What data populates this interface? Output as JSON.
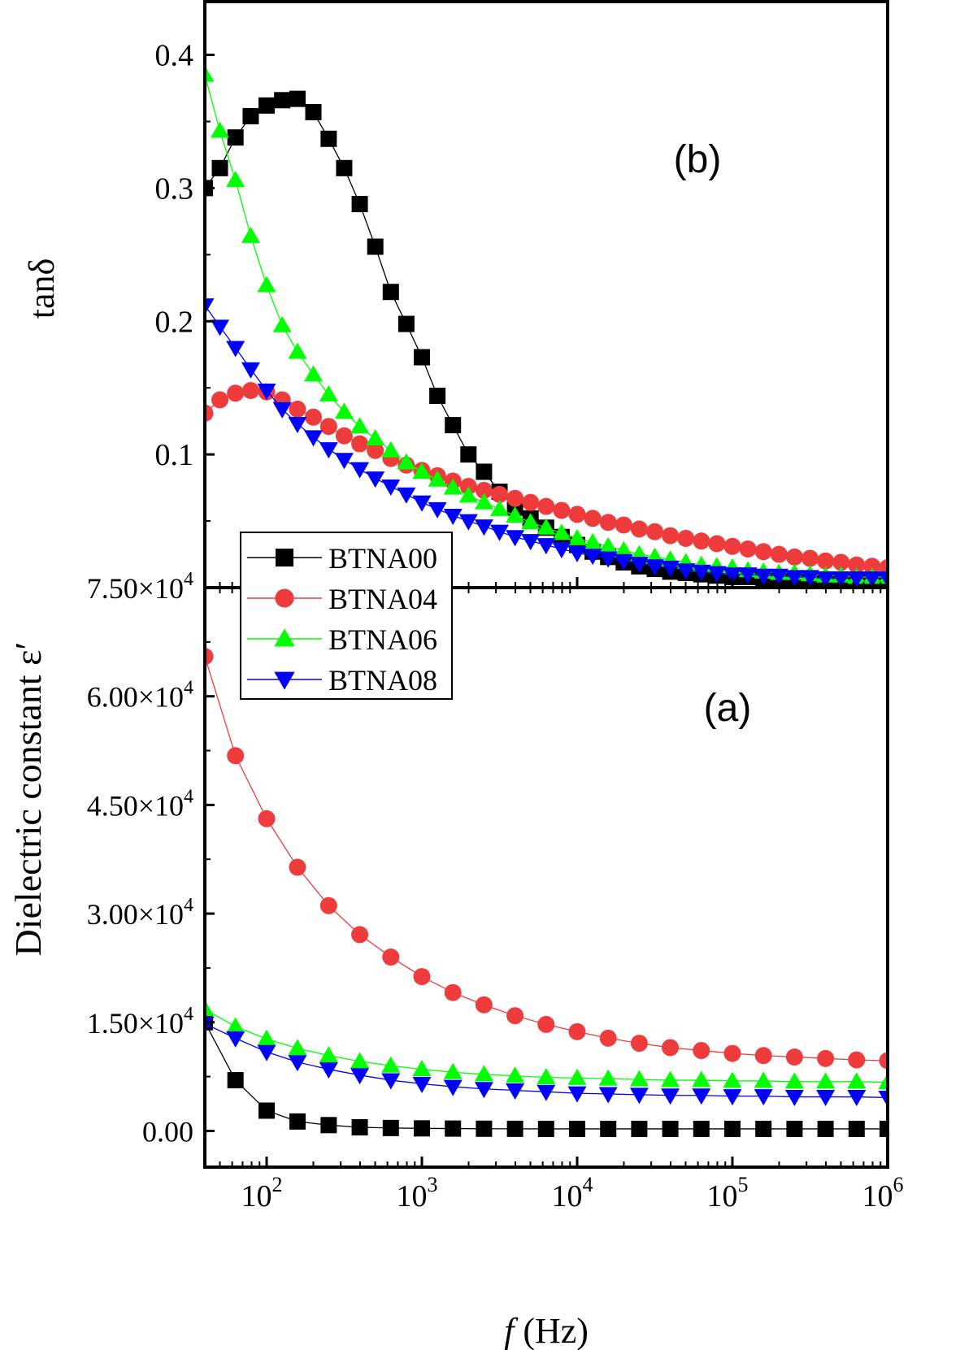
{
  "chart_data": [
    {
      "type": "scatter",
      "panel_label": "(b)",
      "ylabel": "tanδ",
      "xscale": "log",
      "xlim": [
        40,
        1000000
      ],
      "ylim": [
        0.0,
        0.44
      ],
      "yticks": [
        {
          "value": 0.1,
          "label": "0.1"
        },
        {
          "value": 0.2,
          "label": "0.2"
        },
        {
          "value": 0.3,
          "label": "0.3"
        },
        {
          "value": 0.4,
          "label": "0.4"
        }
      ],
      "series": [
        {
          "name": "BTNA00",
          "color": "#000000",
          "marker": "square",
          "x": [
            40,
            50,
            63,
            79,
            100,
            126,
            158,
            200,
            251,
            316,
            398,
            501,
            631,
            794,
            1000,
            1259,
            1585,
            1995,
            2512,
            3162,
            3981,
            5012,
            6310,
            7943,
            10000,
            12589,
            15849,
            19953,
            25119,
            31623,
            39811,
            50119,
            63096,
            79433,
            100000,
            125893,
            158489,
            199526,
            251189,
            316228,
            398107,
            501187,
            630957,
            794328,
            1000000
          ],
          "y": [
            0.3,
            0.315,
            0.338,
            0.354,
            0.362,
            0.366,
            0.367,
            0.357,
            0.337,
            0.315,
            0.288,
            0.256,
            0.222,
            0.198,
            0.173,
            0.144,
            0.122,
            0.1,
            0.087,
            0.072,
            0.06,
            0.052,
            0.045,
            0.038,
            0.032,
            0.027,
            0.023,
            0.019,
            0.016,
            0.014,
            0.012,
            0.011,
            0.01,
            0.009,
            0.008,
            0.008,
            0.007,
            0.007,
            0.006,
            0.006,
            0.006,
            0.005,
            0.005,
            0.005,
            0.005
          ]
        },
        {
          "name": "BTNA04",
          "color": "#ee3b3b",
          "marker": "circle",
          "x": [
            40,
            50,
            63,
            79,
            100,
            126,
            158,
            200,
            251,
            316,
            398,
            501,
            631,
            794,
            1000,
            1259,
            1585,
            1995,
            2512,
            3162,
            3981,
            5012,
            6310,
            7943,
            10000,
            12589,
            15849,
            19953,
            25119,
            31623,
            39811,
            50119,
            63096,
            79433,
            100000,
            125893,
            158489,
            199526,
            251189,
            316228,
            398107,
            501187,
            630957,
            794328,
            1000000
          ],
          "y": [
            0.131,
            0.141,
            0.146,
            0.148,
            0.147,
            0.141,
            0.134,
            0.128,
            0.121,
            0.114,
            0.108,
            0.103,
            0.097,
            0.092,
            0.088,
            0.084,
            0.08,
            0.076,
            0.073,
            0.07,
            0.067,
            0.064,
            0.061,
            0.058,
            0.055,
            0.052,
            0.049,
            0.047,
            0.044,
            0.042,
            0.039,
            0.037,
            0.035,
            0.033,
            0.031,
            0.029,
            0.027,
            0.025,
            0.023,
            0.022,
            0.02,
            0.019,
            0.017,
            0.016,
            0.015
          ]
        },
        {
          "name": "BTNA06",
          "color": "#00ff00",
          "marker": "triangle-up",
          "x": [
            40,
            50,
            63,
            79,
            100,
            126,
            158,
            200,
            251,
            316,
            398,
            501,
            631,
            794,
            1000,
            1259,
            1585,
            1995,
            2512,
            3162,
            3981,
            5012,
            6310,
            7943,
            10000,
            12589,
            15849,
            19953,
            25119,
            31623,
            39811,
            50119,
            63096,
            79433,
            100000,
            125893,
            158489,
            199526,
            251189,
            316228,
            398107,
            501187,
            630957,
            794328,
            1000000
          ],
          "y": [
            0.385,
            0.343,
            0.306,
            0.264,
            0.227,
            0.197,
            0.177,
            0.16,
            0.145,
            0.132,
            0.121,
            0.112,
            0.103,
            0.094,
            0.087,
            0.081,
            0.075,
            0.069,
            0.064,
            0.059,
            0.054,
            0.049,
            0.045,
            0.041,
            0.037,
            0.034,
            0.031,
            0.028,
            0.025,
            0.023,
            0.021,
            0.019,
            0.017,
            0.016,
            0.015,
            0.013,
            0.012,
            0.011,
            0.011,
            0.01,
            0.009,
            0.009,
            0.008,
            0.008,
            0.008
          ]
        },
        {
          "name": "BTNA08",
          "color": "#0000ff",
          "marker": "triangle-down",
          "x": [
            40,
            50,
            63,
            79,
            100,
            126,
            158,
            200,
            251,
            316,
            398,
            501,
            631,
            794,
            1000,
            1259,
            1585,
            1995,
            2512,
            3162,
            3981,
            5012,
            6310,
            7943,
            10000,
            12589,
            15849,
            19953,
            25119,
            31623,
            39811,
            50119,
            63096,
            79433,
            100000,
            125893,
            158489,
            199526,
            251189,
            316228,
            398107,
            501187,
            630957,
            794328,
            1000000
          ],
          "y": [
            0.212,
            0.196,
            0.18,
            0.164,
            0.148,
            0.134,
            0.123,
            0.113,
            0.104,
            0.096,
            0.089,
            0.082,
            0.076,
            0.07,
            0.064,
            0.059,
            0.054,
            0.05,
            0.046,
            0.042,
            0.038,
            0.035,
            0.032,
            0.029,
            0.026,
            0.024,
            0.022,
            0.02,
            0.018,
            0.016,
            0.015,
            0.013,
            0.012,
            0.011,
            0.01,
            0.01,
            0.009,
            0.009,
            0.008,
            0.008,
            0.007,
            0.007,
            0.007,
            0.007,
            0.007
          ]
        }
      ]
    },
    {
      "type": "scatter",
      "panel_label": "(a)",
      "ylabel": "Dielectric constant ε′",
      "xlabel_italic": "f",
      "xlabel_unit": " (Hz)",
      "xscale": "log",
      "xlim": [
        40,
        1000000
      ],
      "ylim": [
        -5000,
        75000
      ],
      "yticks": [
        {
          "value": 0,
          "mant": "0.00",
          "exp": ""
        },
        {
          "value": 15000,
          "mant": "1.50×10",
          "exp": "4"
        },
        {
          "value": 30000,
          "mant": "3.00×10",
          "exp": "4"
        },
        {
          "value": 45000,
          "mant": "4.50×10",
          "exp": "4"
        },
        {
          "value": 60000,
          "mant": "6.00×10",
          "exp": "4"
        },
        {
          "value": 75000,
          "mant": "7.50×10",
          "exp": "4"
        }
      ],
      "xticks": [
        {
          "value": 100,
          "base": "10",
          "exp": "2"
        },
        {
          "value": 1000,
          "base": "10",
          "exp": "3"
        },
        {
          "value": 10000,
          "base": "10",
          "exp": "4"
        },
        {
          "value": 100000,
          "base": "10",
          "exp": "5"
        },
        {
          "value": 1000000,
          "base": "10",
          "exp": "6"
        }
      ],
      "series": [
        {
          "name": "BTNA00",
          "color": "#000000",
          "marker": "square",
          "x": [
            40,
            63,
            100,
            158,
            251,
            398,
            631,
            1000,
            1585,
            2512,
            3981,
            6310,
            10000,
            15849,
            25119,
            39811,
            63096,
            100000,
            158489,
            251189,
            398107,
            630957,
            1000000
          ],
          "y": [
            15000,
            7000,
            2800,
            1300,
            800,
            500,
            400,
            350,
            320,
            300,
            290,
            280,
            280,
            280,
            280,
            280,
            280,
            280,
            280,
            280,
            280,
            280,
            280
          ]
        },
        {
          "name": "BTNA04",
          "color": "#ee3b3b",
          "marker": "circle",
          "x": [
            40,
            63,
            100,
            158,
            251,
            398,
            631,
            1000,
            1585,
            2512,
            3981,
            6310,
            10000,
            15849,
            25119,
            39811,
            63096,
            100000,
            158489,
            251189,
            398107,
            630957,
            1000000
          ],
          "y": [
            65500,
            51800,
            43100,
            36400,
            31100,
            27100,
            24000,
            21300,
            19100,
            17400,
            15900,
            14700,
            13700,
            12800,
            12100,
            11500,
            11100,
            10700,
            10400,
            10200,
            10000,
            9800,
            9700
          ]
        },
        {
          "name": "BTNA06",
          "color": "#00ff00",
          "marker": "triangle-up",
          "x": [
            40,
            63,
            100,
            158,
            251,
            398,
            631,
            1000,
            1585,
            2512,
            3981,
            6310,
            10000,
            15849,
            25119,
            39811,
            63096,
            100000,
            158489,
            251189,
            398107,
            630957,
            1000000
          ],
          "y": [
            16800,
            14400,
            12700,
            11400,
            10400,
            9600,
            9000,
            8500,
            8100,
            7800,
            7600,
            7400,
            7300,
            7200,
            7100,
            7000,
            7000,
            6900,
            6900,
            6800,
            6800,
            6800,
            6700
          ]
        },
        {
          "name": "BTNA08",
          "color": "#0000ff",
          "marker": "triangle-down",
          "x": [
            40,
            63,
            100,
            158,
            251,
            398,
            631,
            1000,
            1585,
            2512,
            3981,
            6310,
            10000,
            15849,
            25119,
            39811,
            63096,
            100000,
            158489,
            251189,
            398107,
            630957,
            1000000
          ],
          "y": [
            14800,
            12800,
            10900,
            9500,
            8500,
            7700,
            7000,
            6500,
            6100,
            5800,
            5600,
            5400,
            5200,
            5100,
            5000,
            4900,
            4900,
            4800,
            4800,
            4700,
            4700,
            4700,
            4600
          ]
        }
      ]
    }
  ]
}
